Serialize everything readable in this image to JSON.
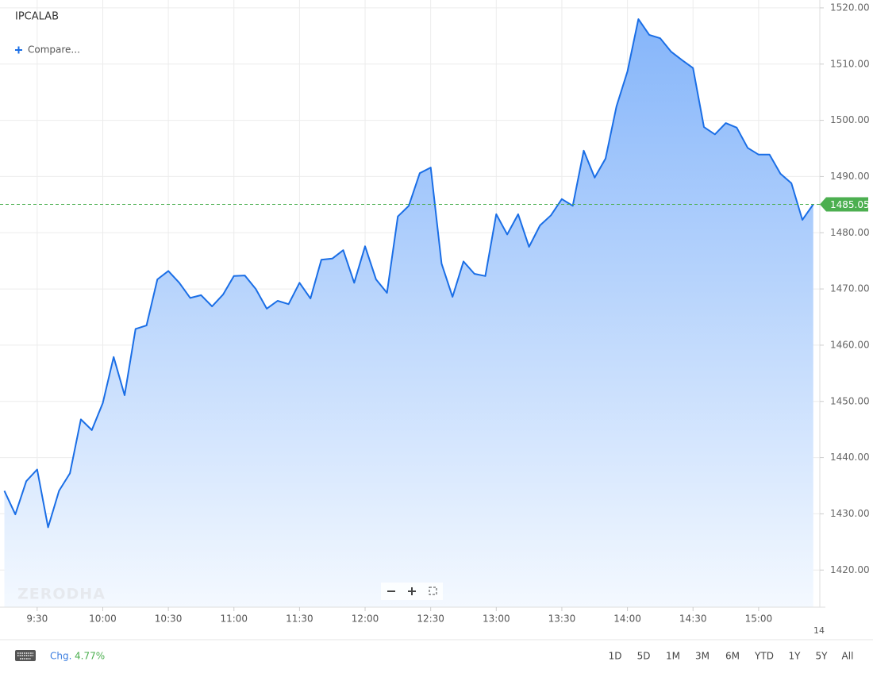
{
  "chart_data": {
    "type": "area",
    "title": "IPCALAB",
    "compare_label": "Compare...",
    "watermark": "ZERODHA",
    "x": [
      "9:15",
      "9:20",
      "9:25",
      "9:30",
      "9:35",
      "9:40",
      "9:45",
      "9:50",
      "9:55",
      "10:00",
      "10:05",
      "10:10",
      "10:15",
      "10:20",
      "10:25",
      "10:30",
      "10:35",
      "10:40",
      "10:45",
      "10:50",
      "10:55",
      "11:00",
      "11:05",
      "11:10",
      "11:15",
      "11:20",
      "11:25",
      "11:30",
      "11:35",
      "11:40",
      "11:45",
      "11:50",
      "11:55",
      "12:00",
      "12:05",
      "12:10",
      "12:15",
      "12:20",
      "12:25",
      "12:30",
      "12:35",
      "12:40",
      "12:45",
      "12:50",
      "12:55",
      "13:00",
      "13:05",
      "13:10",
      "13:15",
      "13:20",
      "13:25",
      "13:30",
      "13:35",
      "13:40",
      "13:45",
      "13:50",
      "13:55",
      "14:00",
      "14:05",
      "14:10",
      "14:15",
      "14:20",
      "14:25",
      "14:30",
      "14:35",
      "14:40",
      "14:45",
      "14:50",
      "14:55",
      "15:00",
      "15:05",
      "15:10",
      "15:15",
      "15:20",
      "15:25"
    ],
    "values": [
      1434.1,
      1429.9,
      1435.8,
      1437.9,
      1427.6,
      1434.1,
      1437.2,
      1446.8,
      1444.9,
      1449.7,
      1457.9,
      1451.1,
      1462.9,
      1463.5,
      1471.7,
      1473.2,
      1471.1,
      1468.4,
      1468.9,
      1466.9,
      1469.0,
      1472.3,
      1472.4,
      1470.0,
      1466.5,
      1467.9,
      1467.3,
      1471.1,
      1468.3,
      1475.2,
      1475.4,
      1476.9,
      1471.1,
      1477.6,
      1471.7,
      1469.3,
      1482.9,
      1484.8,
      1490.6,
      1491.6,
      1474.5,
      1468.6,
      1474.9,
      1472.7,
      1472.3,
      1483.3,
      1479.7,
      1483.3,
      1477.5,
      1481.3,
      1483.1,
      1486.0,
      1484.8,
      1494.6,
      1489.8,
      1493.2,
      1502.5,
      1508.7,
      1518.0,
      1515.2,
      1514.6,
      1512.2,
      1510.7,
      1509.3,
      1498.8,
      1497.5,
      1499.5,
      1498.7,
      1495.1,
      1493.9,
      1493.9,
      1490.5,
      1488.8,
      1482.3,
      1485.05
    ],
    "value_labels": {
      "74": "1485.05"
    },
    "color": "#1a6ee6",
    "last_price_color": "#4caf50",
    "ylim": [
      1413.4,
      1521.4
    ],
    "yticks": [
      {
        "value": 1420,
        "label": "1420.00"
      },
      {
        "value": 1430,
        "label": "1430.00"
      },
      {
        "value": 1440,
        "label": "1440.00"
      },
      {
        "value": 1450,
        "label": "1450.00"
      },
      {
        "value": 1460,
        "label": "1460.00"
      },
      {
        "value": 1470,
        "label": "1470.00"
      },
      {
        "value": 1480,
        "label": "1480.00"
      },
      {
        "value": 1490,
        "label": "1490.00"
      },
      {
        "value": 1500,
        "label": "1500.00"
      },
      {
        "value": 1510,
        "label": "1510.00"
      },
      {
        "value": 1520,
        "label": "1520.00"
      }
    ],
    "xlim": [
      "9:13",
      "15:28"
    ],
    "xticks": [
      "9:30",
      "10:00",
      "10:30",
      "11:00",
      "11:30",
      "12:00",
      "12:30",
      "13:00",
      "13:30",
      "14:00",
      "14:30",
      "15:00"
    ],
    "x_edge_label": "14",
    "grid": true,
    "change": {
      "label": "Chg.",
      "value": "4.77%"
    },
    "ranges": [
      "1D",
      "5D",
      "1M",
      "3M",
      "6M",
      "YTD",
      "1Y",
      "5Y",
      "All"
    ]
  }
}
